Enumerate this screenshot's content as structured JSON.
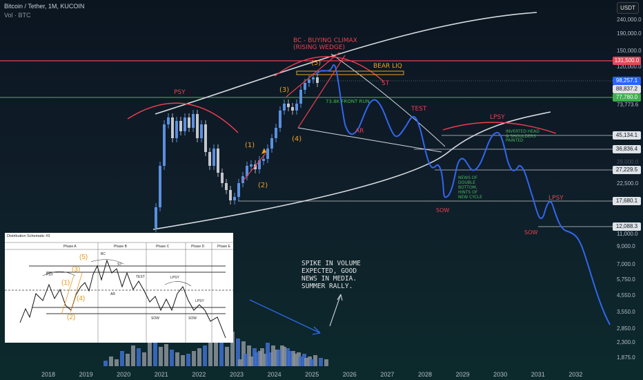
{
  "header": {
    "symbol_line": "Bitcoin / Tether, 1M, KUCOIN",
    "volume_line": "Vol · BTC",
    "currency_button": "USDT"
  },
  "price_axis": {
    "labels": [
      "240,000.0",
      "190,000.0",
      "150,000.0",
      "120,000.0",
      "73,773.6",
      "22,500.0",
      "11,000.0",
      "9,000.0",
      "7,000.0",
      "5,750.0",
      "4,550.0",
      "3,550.0",
      "2,850.0",
      "2,300.0",
      "1,875.0"
    ],
    "faint_labels": [
      "29,000.0",
      "27,000.0"
    ]
  },
  "price_badges": [
    {
      "value": "131,500.0",
      "bg": "#e6465a",
      "fg": "#ffffff"
    },
    {
      "value": "98,257.1",
      "bg": "#2962ff",
      "fg": "#ffffff"
    },
    {
      "value": "88,837.2",
      "bg": "#dfe3e8",
      "fg": "#131722"
    },
    {
      "value": "77,780.0",
      "bg": "#3fae4f",
      "fg": "#ffffff"
    },
    {
      "value": "45,134.1",
      "bg": "#dfe3e8",
      "fg": "#131722"
    },
    {
      "value": "36,836.4",
      "bg": "#dfe3e8",
      "fg": "#131722"
    },
    {
      "value": "27,229.5",
      "bg": "#dfe3e8",
      "fg": "#131722"
    },
    {
      "value": "17,680.1",
      "bg": "#dfe3e8",
      "fg": "#131722"
    },
    {
      "value": "12,088.3",
      "bg": "#dfe3e8",
      "fg": "#131722"
    }
  ],
  "time_axis": [
    "2018",
    "2019",
    "2020",
    "2021",
    "2022",
    "2023",
    "2024",
    "2025",
    "2026",
    "2027",
    "2028",
    "2029",
    "2030",
    "2031",
    "2032"
  ],
  "annotations": {
    "bc_line1": "BC - BUYING CLIMAX",
    "bc_line2": "(RISING WEDGE)",
    "bear_liq": "BEAR LIQ",
    "st": "ST",
    "psy": "PSY",
    "test": "TEST",
    "lpsy_1": "LPSY",
    "lpsy_2": "LPSY",
    "ar": "AR",
    "sow_1": "SOW",
    "sow_2": "SOW",
    "front_run": "73.8K FRONT RUN",
    "inv_hs": [
      "INVERTED HEAD",
      "& SHOULDERS",
      "PAINTED"
    ],
    "news": [
      "NEWS OF",
      "DOUBLE",
      "BOTTOM,",
      "HINTS OF",
      "NEW CYCLE"
    ],
    "waves": [
      "(1)",
      "(2)",
      "(3)",
      "(4)",
      "(5)"
    ],
    "spike_note": [
      "SPIKE IN VOLUME",
      "EXPECTED, GOOD",
      "NEWS IN MEDIA.",
      "SUMMER RALLY."
    ]
  },
  "inset": {
    "title": "Distribution Schematic #3",
    "phases": [
      "Phase A",
      "Phase B",
      "Phase C",
      "Phase D",
      "Phase E"
    ],
    "labels": {
      "psy": "PSY",
      "bc": "BC",
      "st": "ST",
      "ar": "AR",
      "test": "TEST",
      "lpsy1": "LPSY",
      "lpsy2": "LPSY",
      "sow1": "SOW",
      "sow2": "SOW"
    },
    "waves": [
      "(1)",
      "(2)",
      "(3)",
      "(4)",
      "(5)"
    ]
  },
  "colors": {
    "red": "#ef3e50",
    "orange": "#f0a21c",
    "green": "#49b45a",
    "blue": "#2d6bf0",
    "white_line": "#d7dbe0"
  }
}
